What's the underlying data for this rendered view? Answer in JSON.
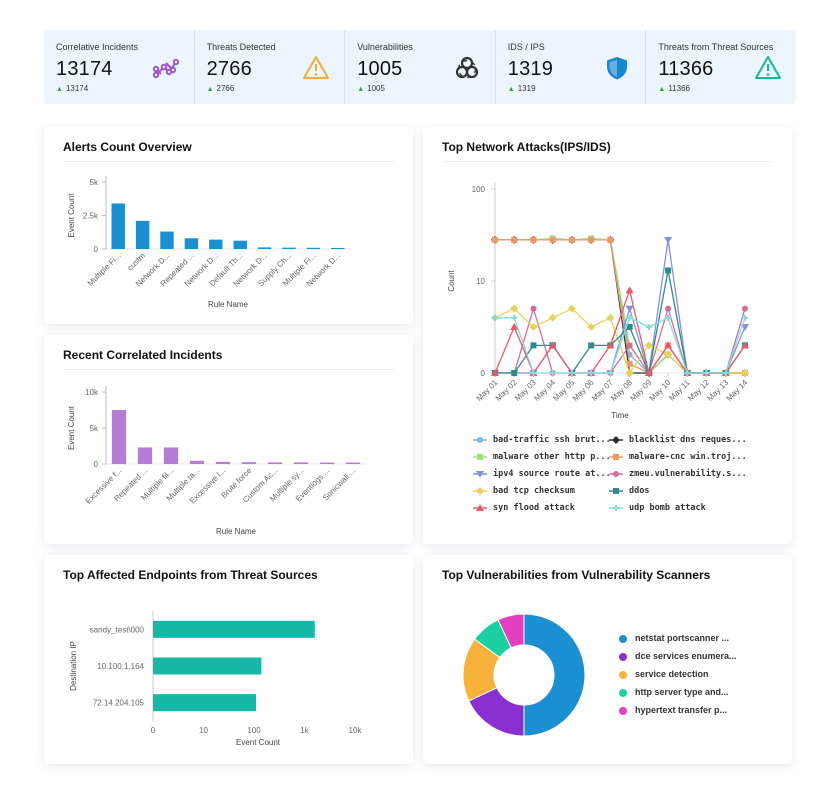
{
  "kpis": [
    {
      "label": "Correlative Incidents",
      "value": "13174",
      "delta": "13174",
      "icon": "correlation-icon",
      "color": "#9b59d0"
    },
    {
      "label": "Threats Detected",
      "value": "2766",
      "delta": "2766",
      "icon": "warning-icon",
      "color": "#e8b23a"
    },
    {
      "label": "Vulnerabilities",
      "value": "1005",
      "delta": "1005",
      "icon": "biohazard-icon",
      "color": "#333333"
    },
    {
      "label": "IDS / IPS",
      "value": "1319",
      "delta": "1319",
      "icon": "shield-icon",
      "color": "#1a86d0"
    },
    {
      "label": "Threats from Threat Sources",
      "value": "11366",
      "delta": "11366",
      "icon": "alert-triangle-icon",
      "color": "#18b89a"
    }
  ],
  "alerts_card": {
    "title": "Alerts Count Overview"
  },
  "network_card": {
    "title": "Top Network Attacks(IPS/IDS)"
  },
  "correlated_card": {
    "title": "Recent Correlated Incidents"
  },
  "endpoints_card": {
    "title": "Top Affected Endpoints from Threat Sources"
  },
  "vuln_card": {
    "title": "Top Vulnerabilities from Vulnerability Scanners"
  },
  "chart_data": [
    {
      "id": "alerts",
      "type": "bar",
      "title": "Alerts Count Overview",
      "xlabel": "Rule Name",
      "ylabel": "Event Count",
      "yticks": [
        "0",
        "2.5k",
        "5k"
      ],
      "ylim": [
        0,
        5000
      ],
      "color": "#1a8fd1",
      "categories": [
        "Multiple Fi...",
        "custm",
        "Network D...",
        "Repeated ...",
        "Network D...",
        "Default Th...",
        "Network D...",
        "Supply Ch...",
        "Multiple Fi...",
        "Network D..."
      ],
      "values": [
        3400,
        2100,
        1300,
        800,
        700,
        620,
        120,
        100,
        90,
        80
      ]
    },
    {
      "id": "correlated",
      "type": "bar",
      "title": "Recent Correlated Incidents",
      "xlabel": "Rule Name",
      "ylabel": "Event Count",
      "yticks": [
        "0",
        "5k",
        "10k"
      ],
      "ylim": [
        0,
        10000
      ],
      "color": "#b57bd6",
      "categories": [
        "Excessive f...",
        "Repeated ...",
        "Multiple fil...",
        "Multiple ta...",
        "Excessive l...",
        "Brute force",
        "Custom Ac...",
        "Multiple sy...",
        "Eventlogs ...",
        "Sonicwall ..."
      ],
      "values": [
        7500,
        2300,
        2300,
        450,
        300,
        250,
        220,
        220,
        200,
        200
      ]
    },
    {
      "id": "network",
      "type": "line",
      "title": "Top Network Attacks(IPS/IDS)",
      "xlabel": "Time",
      "ylabel": "Count",
      "yticks": [
        "0",
        "10",
        "100"
      ],
      "categories": [
        "May 01",
        "May 02",
        "May 03",
        "May 04",
        "May 05",
        "May 06",
        "May 07",
        "May 08",
        "May 09",
        "May 10",
        "May 11",
        "May 12",
        "May 13",
        "May 14"
      ],
      "series": [
        {
          "name": "bad-traffic ssh brut...",
          "color": "#7fb3e8",
          "marker": "circle",
          "values": [
            28,
            28,
            28,
            28,
            28,
            28,
            28,
            2,
            0,
            3,
            0,
            0,
            0,
            0
          ]
        },
        {
          "name": "blacklist dns reques...",
          "color": "#2d2d2d",
          "marker": "diamond",
          "values": [
            28,
            28,
            28,
            28,
            28,
            28,
            28,
            0,
            0,
            2,
            0,
            0,
            0,
            0
          ]
        },
        {
          "name": "malware other http p...",
          "color": "#9fe07a",
          "marker": "square",
          "values": [
            28,
            28,
            28,
            29,
            28,
            29,
            28,
            3,
            0,
            2,
            0,
            0,
            0,
            0
          ]
        },
        {
          "name": "malware-cnc win.troj...",
          "color": "#e89a6a",
          "marker": "square",
          "values": [
            28,
            28,
            28,
            28,
            28,
            28,
            28,
            1,
            0,
            3,
            0,
            0,
            0,
            0
          ]
        },
        {
          "name": "ipv4 source route at...",
          "color": "#8590e0",
          "marker": "triangle-down",
          "values": [
            0,
            0,
            0,
            3,
            0,
            0,
            0,
            7,
            0,
            28,
            0,
            0,
            0,
            5
          ]
        },
        {
          "name": "zmeu.vulnerability.s...",
          "color": "#d86a9a",
          "marker": "circle",
          "values": [
            0,
            0,
            7,
            0,
            0,
            0,
            0,
            3,
            0,
            7,
            0,
            0,
            0,
            7
          ]
        },
        {
          "name": "bad tcp checksum",
          "color": "#e8d35a",
          "marker": "diamond",
          "values": [
            6,
            7,
            5,
            6,
            7,
            5,
            6,
            0,
            3,
            2,
            0,
            0,
            0,
            0
          ]
        },
        {
          "name": "ddos",
          "color": "#2e8b8b",
          "marker": "square",
          "values": [
            0,
            0,
            3,
            3,
            0,
            3,
            3,
            5,
            0,
            13,
            0,
            0,
            0,
            3
          ]
        },
        {
          "name": "syn flood attack",
          "color": "#e85a6a",
          "marker": "triangle-up",
          "values": [
            0,
            5,
            0,
            3,
            0,
            0,
            3,
            9,
            0,
            3,
            0,
            0,
            0,
            3
          ]
        },
        {
          "name": "udp bomb attack",
          "color": "#7fdedc",
          "marker": "cross",
          "values": [
            6,
            6,
            0,
            0,
            0,
            0,
            0,
            6,
            5,
            6,
            0,
            0,
            0,
            6
          ]
        }
      ]
    },
    {
      "id": "endpoints",
      "type": "bar",
      "orientation": "horizontal",
      "scale": "log",
      "title": "Top Affected Endpoints from Threat Sources",
      "xlabel": "Event Count",
      "ylabel": "Destination IP",
      "xticks": [
        "0",
        "10",
        "100",
        "1k",
        "10k"
      ],
      "color": "#18b8a8",
      "categories": [
        "sandy_test\\000",
        "10.100.1.164",
        "72.14.204.105"
      ],
      "values": [
        1600,
        140,
        110
      ]
    },
    {
      "id": "vulnerabilities",
      "type": "pie",
      "donut": true,
      "title": "Top Vulnerabilities from Vulnerability Scanners",
      "labels": [
        "netstat portscanner ...",
        "dce services enumera...",
        "service detection",
        "http server type and...",
        "hypertext transfer p..."
      ],
      "values": [
        50,
        18,
        17,
        8,
        7
      ],
      "colors": [
        "#1a8fd1",
        "#8a2fd0",
        "#f7b23b",
        "#1ccfa0",
        "#e33fbf"
      ]
    }
  ]
}
